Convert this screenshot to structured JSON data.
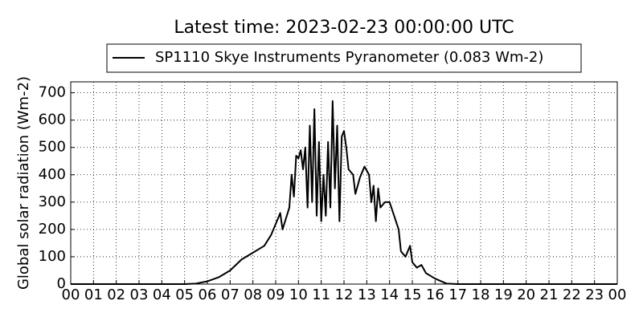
{
  "chart_data": {
    "type": "line",
    "title": "Latest time: 2023-02-23 00:00:00 UTC",
    "y_label": "Global solar radiation (Wm-2)",
    "x": [
      0,
      5,
      5.5,
      6,
      6.5,
      7,
      7.5,
      8,
      8.5,
      8.8,
      9,
      9.2,
      9.3,
      9.6,
      9.7,
      9.8,
      9.9,
      10,
      10.1,
      10.2,
      10.3,
      10.4,
      10.5,
      10.6,
      10.7,
      10.8,
      10.9,
      11,
      11.1,
      11.2,
      11.3,
      11.4,
      11.5,
      11.6,
      11.7,
      11.8,
      11.9,
      12,
      12.1,
      12.2,
      12.4,
      12.5,
      12.7,
      12.9,
      13.1,
      13.2,
      13.3,
      13.4,
      13.5,
      13.6,
      13.8,
      14,
      14.2,
      14.4,
      14.5,
      14.7,
      14.9,
      15,
      15.2,
      15.4,
      15.6,
      16,
      16.5,
      17,
      24
    ],
    "series": [
      {
        "name": "SP1110 Skye Instruments Pyranometer (0.083 Wm-2)",
        "color": "#000000",
        "values": [
          0,
          0,
          2,
          10,
          25,
          50,
          90,
          115,
          140,
          180,
          220,
          260,
          200,
          280,
          400,
          320,
          470,
          460,
          490,
          420,
          500,
          280,
          580,
          300,
          640,
          250,
          520,
          230,
          400,
          250,
          520,
          280,
          670,
          350,
          580,
          230,
          540,
          560,
          500,
          420,
          400,
          330,
          390,
          430,
          400,
          300,
          360,
          230,
          350,
          280,
          300,
          300,
          250,
          200,
          120,
          100,
          140,
          80,
          60,
          70,
          40,
          20,
          2,
          0,
          0
        ]
      }
    ],
    "xlim": [
      0,
      24
    ],
    "xticks": [
      {
        "value": 0,
        "label": "00"
      },
      {
        "value": 1,
        "label": "01"
      },
      {
        "value": 2,
        "label": "02"
      },
      {
        "value": 3,
        "label": "03"
      },
      {
        "value": 4,
        "label": "04"
      },
      {
        "value": 5,
        "label": "05"
      },
      {
        "value": 6,
        "label": "06"
      },
      {
        "value": 7,
        "label": "07"
      },
      {
        "value": 8,
        "label": "08"
      },
      {
        "value": 9,
        "label": "09"
      },
      {
        "value": 10,
        "label": "10"
      },
      {
        "value": 11,
        "label": "11"
      },
      {
        "value": 12,
        "label": "12"
      },
      {
        "value": 13,
        "label": "13"
      },
      {
        "value": 14,
        "label": "14"
      },
      {
        "value": 15,
        "label": "15"
      },
      {
        "value": 16,
        "label": "16"
      },
      {
        "value": 17,
        "label": "17"
      },
      {
        "value": 18,
        "label": "18"
      },
      {
        "value": 19,
        "label": "19"
      },
      {
        "value": 20,
        "label": "20"
      },
      {
        "value": 21,
        "label": "21"
      },
      {
        "value": 22,
        "label": "22"
      },
      {
        "value": 23,
        "label": "23"
      },
      {
        "value": 24,
        "label": "00"
      }
    ],
    "ylim": [
      0,
      740
    ],
    "yticks": [
      0,
      100,
      200,
      300,
      400,
      500,
      600,
      700
    ],
    "grid": true,
    "legend": "top"
  }
}
